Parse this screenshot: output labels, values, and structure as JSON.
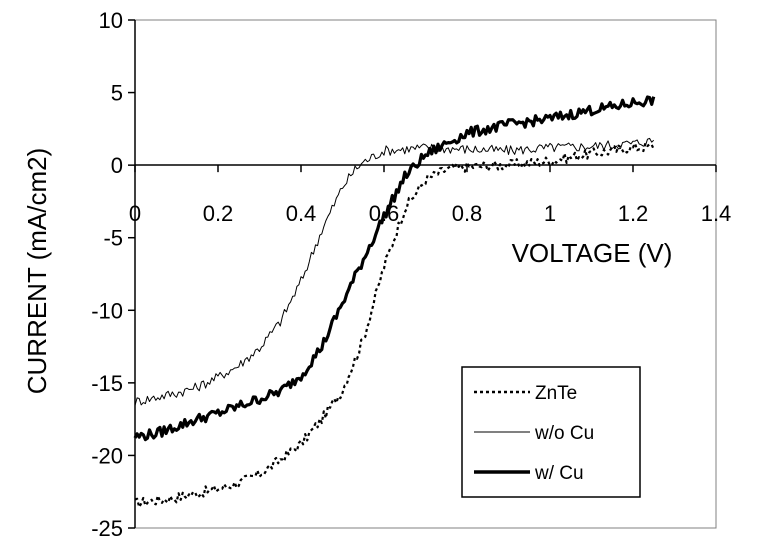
{
  "chart_data": {
    "type": "line",
    "title": "",
    "xlabel": "VOLTAGE (V)",
    "ylabel": "CURRENT (mA/cm2)",
    "xlim": [
      0,
      1.4
    ],
    "ylim": [
      -25,
      10
    ],
    "x_ticks": [
      "0",
      "0.2",
      "0.4",
      "0.6",
      "0.8",
      "1",
      "1.2",
      "1.4"
    ],
    "y_ticks": [
      "10",
      "5",
      "0",
      "-5",
      "-10",
      "-15",
      "-20",
      "-25"
    ],
    "grid": false,
    "legend_position": "bottom-right",
    "series": [
      {
        "name": "ZnTe",
        "style": "dotted",
        "color": "#000000",
        "points": [
          [
            0,
            -23.3
          ],
          [
            0.05,
            -23.1
          ],
          [
            0.1,
            -22.9
          ],
          [
            0.15,
            -22.6
          ],
          [
            0.2,
            -22.3
          ],
          [
            0.25,
            -21.9
          ],
          [
            0.3,
            -21.3
          ],
          [
            0.35,
            -20.3
          ],
          [
            0.4,
            -19.2
          ],
          [
            0.45,
            -17.5
          ],
          [
            0.5,
            -15.5
          ],
          [
            0.55,
            -12.0
          ],
          [
            0.6,
            -7.0
          ],
          [
            0.65,
            -3.0
          ],
          [
            0.7,
            -1.0
          ],
          [
            0.75,
            -0.3
          ],
          [
            0.8,
            -0.1
          ],
          [
            0.9,
            0.0
          ],
          [
            1.0,
            0.3
          ],
          [
            1.1,
            0.8
          ],
          [
            1.2,
            1.2
          ],
          [
            1.25,
            1.3
          ]
        ]
      },
      {
        "name": "w/o Cu",
        "style": "thin",
        "color": "#000000",
        "points": [
          [
            0,
            -16.3
          ],
          [
            0.05,
            -16.0
          ],
          [
            0.1,
            -15.7
          ],
          [
            0.15,
            -15.3
          ],
          [
            0.2,
            -14.6
          ],
          [
            0.25,
            -13.8
          ],
          [
            0.3,
            -12.6
          ],
          [
            0.35,
            -10.8
          ],
          [
            0.4,
            -8.0
          ],
          [
            0.45,
            -4.5
          ],
          [
            0.5,
            -1.5
          ],
          [
            0.53,
            -0.3
          ],
          [
            0.55,
            0.2
          ],
          [
            0.6,
            1.0
          ],
          [
            0.7,
            1.2
          ],
          [
            0.8,
            1.1
          ],
          [
            0.9,
            1.0
          ],
          [
            1.0,
            1.2
          ],
          [
            1.1,
            1.3
          ],
          [
            1.2,
            1.5
          ],
          [
            1.25,
            1.7
          ]
        ]
      },
      {
        "name": "w/ Cu",
        "style": "thick",
        "color": "#000000",
        "points": [
          [
            0,
            -18.7
          ],
          [
            0.05,
            -18.5
          ],
          [
            0.1,
            -18.0
          ],
          [
            0.15,
            -17.5
          ],
          [
            0.2,
            -17.1
          ],
          [
            0.25,
            -16.6
          ],
          [
            0.3,
            -16.1
          ],
          [
            0.35,
            -15.6
          ],
          [
            0.4,
            -14.5
          ],
          [
            0.45,
            -12.5
          ],
          [
            0.5,
            -9.5
          ],
          [
            0.55,
            -6.5
          ],
          [
            0.6,
            -3.5
          ],
          [
            0.65,
            -0.8
          ],
          [
            0.7,
            0.7
          ],
          [
            0.75,
            1.5
          ],
          [
            0.8,
            2.2
          ],
          [
            0.85,
            2.5
          ],
          [
            0.9,
            2.8
          ],
          [
            0.95,
            3.0
          ],
          [
            1.0,
            3.2
          ],
          [
            1.05,
            3.5
          ],
          [
            1.1,
            3.8
          ],
          [
            1.15,
            4.0
          ],
          [
            1.2,
            4.3
          ],
          [
            1.25,
            4.5
          ]
        ]
      }
    ]
  }
}
